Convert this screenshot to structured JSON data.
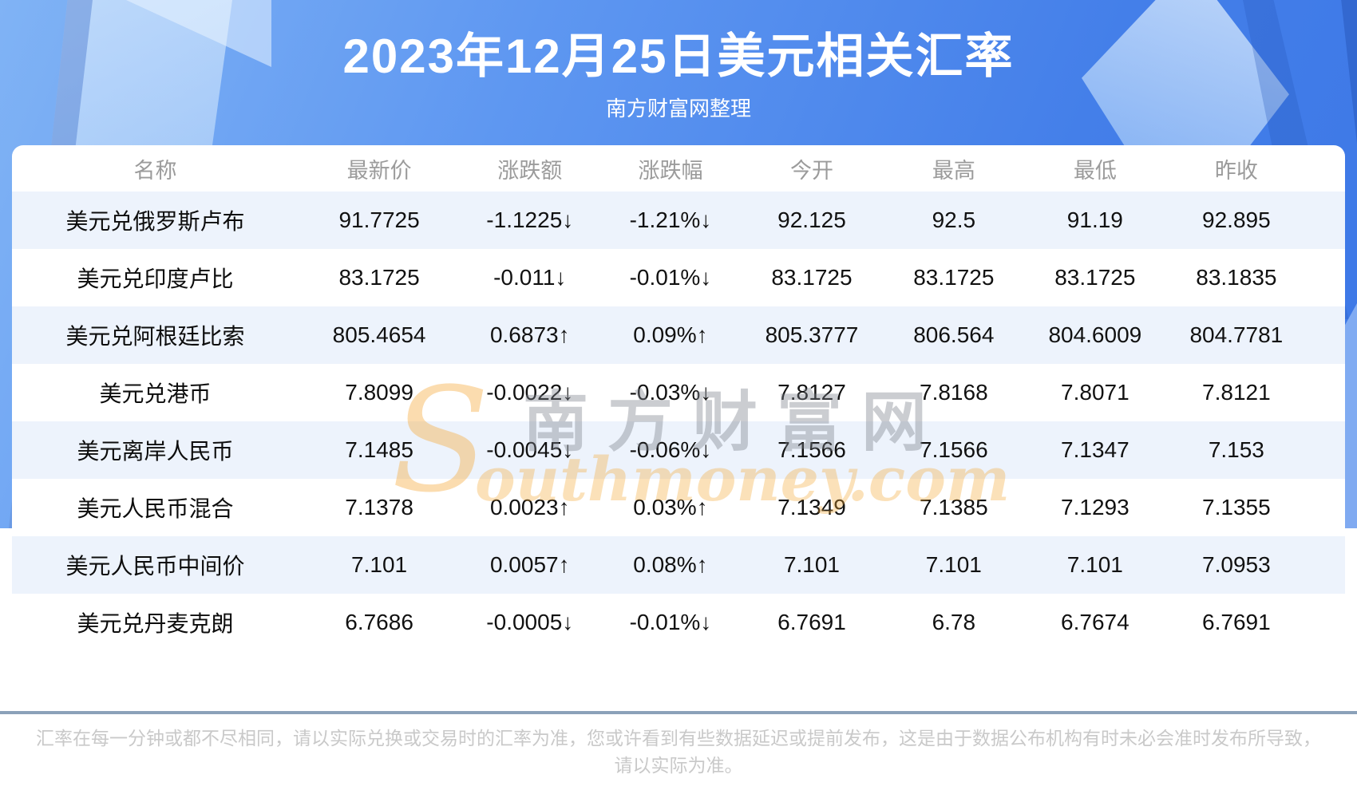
{
  "banner": {
    "title": "2023年12月25日美元相关汇率",
    "subtitle": "南方财富网整理"
  },
  "watermark": {
    "logo_s": "S",
    "site_cn": "南方财富网",
    "site_en": "outhmoney.com"
  },
  "table": {
    "columns": [
      "名称",
      "最新价",
      "涨跌额",
      "涨跌幅",
      "今开",
      "最高",
      "最低",
      "昨收"
    ],
    "rows": [
      {
        "name": "美元兑俄罗斯卢布",
        "last": "91.7725",
        "change": "-1.1225↓",
        "pct": "-1.21%↓",
        "open": "92.125",
        "high": "92.5",
        "low": "91.19",
        "prev": "92.895",
        "dir": "down"
      },
      {
        "name": "美元兑印度卢比",
        "last": "83.1725",
        "change": "-0.011↓",
        "pct": "-0.01%↓",
        "open": "83.1725",
        "high": "83.1725",
        "low": "83.1725",
        "prev": "83.1835",
        "dir": "down"
      },
      {
        "name": "美元兑阿根廷比索",
        "last": "805.4654",
        "change": "0.6873↑",
        "pct": "0.09%↑",
        "open": "805.3777",
        "high": "806.564",
        "low": "804.6009",
        "prev": "804.7781",
        "dir": "up"
      },
      {
        "name": "美元兑港币",
        "last": "7.8099",
        "change": "-0.0022↓",
        "pct": "-0.03%↓",
        "open": "7.8127",
        "high": "7.8168",
        "low": "7.8071",
        "prev": "7.8121",
        "dir": "down"
      },
      {
        "name": "美元离岸人民币",
        "last": "7.1485",
        "change": "-0.0045↓",
        "pct": "-0.06%↓",
        "open": "7.1566",
        "high": "7.1566",
        "low": "7.1347",
        "prev": "7.153",
        "dir": "down"
      },
      {
        "name": "美元人民币混合",
        "last": "7.1378",
        "change": "0.0023↑",
        "pct": "0.03%↑",
        "open": "7.1349",
        "high": "7.1385",
        "low": "7.1293",
        "prev": "7.1355",
        "dir": "up"
      },
      {
        "name": "美元人民币中间价",
        "last": "7.101",
        "change": "0.0057↑",
        "pct": "0.08%↑",
        "open": "7.101",
        "high": "7.101",
        "low": "7.101",
        "prev": "7.0953",
        "dir": "up"
      },
      {
        "name": "美元兑丹麦克朗",
        "last": "6.7686",
        "change": "-0.0005↓",
        "pct": "-0.01%↓",
        "open": "6.7691",
        "high": "6.78",
        "low": "6.7674",
        "prev": "6.7691",
        "dir": "down"
      }
    ]
  },
  "footer": {
    "lines": [
      "汇率在每一分钟或都不尽相同，请以实际兑换或交易时的汇率为准，您或许看到有些数据延迟或提前发布，这是由于数据公布机构有时未必会准时发布所导致，",
      "请以实际为准。"
    ]
  },
  "colors": {
    "up_red": "#f50c0c",
    "down_green": "#0f9e0f",
    "banner_blue": "#4a84ec",
    "row_alt_blue": "#edf3fc",
    "divider_steel": "#8ba1b9"
  }
}
